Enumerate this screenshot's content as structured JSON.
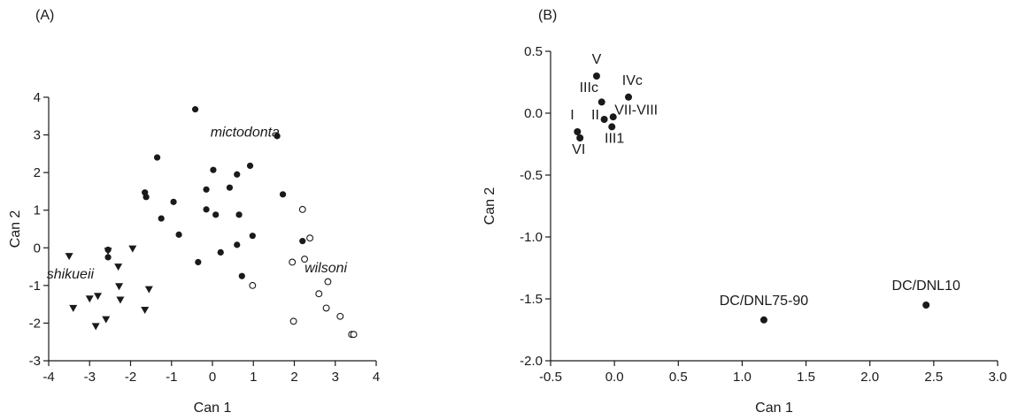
{
  "chart_data": [
    {
      "panel": "(A)",
      "type": "scatter",
      "xlabel": "Can 1",
      "ylabel": "Can 2",
      "xlim": [
        -4,
        4
      ],
      "ylim": [
        -3,
        4
      ],
      "xticks": [
        "-4",
        "-3",
        "-2",
        "-1",
        "0",
        "1",
        "2",
        "3",
        "4"
      ],
      "yticks": [
        "-3",
        "-2",
        "-1",
        "0",
        "1",
        "2",
        "3",
        "4"
      ],
      "grid": false,
      "series": [
        {
          "label": "mictodonta",
          "marker": "filled-circle",
          "label_at": [
            -0.05,
            2.95
          ],
          "points": [
            [
              -0.42,
              3.68
            ],
            [
              1.58,
              2.97
            ],
            [
              -1.35,
              2.4
            ],
            [
              0.92,
              2.18
            ],
            [
              0.02,
              2.07
            ],
            [
              0.6,
              1.95
            ],
            [
              -0.15,
              1.55
            ],
            [
              0.42,
              1.6
            ],
            [
              -1.65,
              1.47
            ],
            [
              -1.62,
              1.35
            ],
            [
              1.72,
              1.42
            ],
            [
              -0.95,
              1.22
            ],
            [
              -0.15,
              1.02
            ],
            [
              0.08,
              0.88
            ],
            [
              0.65,
              0.88
            ],
            [
              -1.25,
              0.78
            ],
            [
              -0.82,
              0.35
            ],
            [
              0.98,
              0.32
            ],
            [
              0.6,
              0.08
            ],
            [
              2.2,
              0.18
            ],
            [
              0.2,
              -0.12
            ],
            [
              -0.35,
              -0.38
            ],
            [
              0.72,
              -0.75
            ],
            [
              -2.55,
              -0.05
            ],
            [
              -2.55,
              -0.25
            ]
          ]
        },
        {
          "label": "wilsoni",
          "marker": "open-circle",
          "label_at": [
            2.25,
            -0.65
          ],
          "points": [
            [
              2.2,
              1.02
            ],
            [
              2.38,
              0.26
            ],
            [
              2.25,
              -0.3
            ],
            [
              1.95,
              -0.38
            ],
            [
              0.98,
              -1.0
            ],
            [
              2.82,
              -0.9
            ],
            [
              2.6,
              -1.22
            ],
            [
              2.78,
              -1.6
            ],
            [
              3.12,
              -1.82
            ],
            [
              1.98,
              -1.95
            ],
            [
              3.4,
              -2.3
            ],
            [
              3.45,
              -2.3
            ]
          ]
        },
        {
          "label": "shikueii",
          "marker": "filled-triangle-down",
          "label_at": [
            -4.05,
            -0.82
          ],
          "points": [
            [
              -3.5,
              -0.22
            ],
            [
              -1.95,
              -0.02
            ],
            [
              -2.55,
              -0.08
            ],
            [
              -2.3,
              -0.5
            ],
            [
              -1.55,
              -1.1
            ],
            [
              -3.0,
              -1.35
            ],
            [
              -2.8,
              -1.28
            ],
            [
              -2.28,
              -1.02
            ],
            [
              -3.4,
              -1.6
            ],
            [
              -2.25,
              -1.38
            ],
            [
              -2.6,
              -1.9
            ],
            [
              -1.65,
              -1.65
            ],
            [
              -2.85,
              -2.08
            ]
          ]
        }
      ]
    },
    {
      "panel": "(B)",
      "type": "scatter",
      "xlabel": "Can 1",
      "ylabel": "Can 2",
      "xlim": [
        -0.5,
        3.0
      ],
      "ylim": [
        -2.0,
        0.5
      ],
      "xticks": [
        "-0.5",
        "0.0",
        "0.5",
        "1.0",
        "1.5",
        "2.0",
        "2.5",
        "3.0"
      ],
      "yticks": [
        "-2.0",
        "-1.5",
        "-1.0",
        "-0.5",
        "0.0",
        "0.5"
      ],
      "grid": false,
      "points": [
        {
          "label": "V",
          "x": -0.14,
          "y": 0.3,
          "label_at": [
            -0.14,
            0.4
          ]
        },
        {
          "label": "IIIc",
          "x": -0.1,
          "y": 0.09,
          "label_at": [
            -0.2,
            0.17
          ]
        },
        {
          "label": "IVc",
          "x": 0.11,
          "y": 0.13,
          "label_at": [
            0.14,
            0.23
          ]
        },
        {
          "label": "II",
          "x": -0.08,
          "y": -0.05,
          "label_at": [
            -0.15,
            -0.05
          ]
        },
        {
          "label": "VII-VIII",
          "x": -0.01,
          "y": -0.03,
          "label_at": [
            0.17,
            -0.01
          ]
        },
        {
          "label": "III1",
          "x": -0.02,
          "y": -0.11,
          "label_at": [
            0.0,
            -0.24
          ]
        },
        {
          "label": "I",
          "x": -0.29,
          "y": -0.15,
          "label_at": [
            -0.33,
            -0.05
          ]
        },
        {
          "label": "VI",
          "x": -0.27,
          "y": -0.2,
          "label_at": [
            -0.28,
            -0.33
          ]
        },
        {
          "label": "DC/DNL75-90",
          "x": 1.17,
          "y": -1.67,
          "label_at": [
            1.17,
            -1.55
          ]
        },
        {
          "label": "DC/DNL10",
          "x": 2.44,
          "y": -1.55,
          "label_at": [
            2.44,
            -1.43
          ]
        }
      ]
    }
  ]
}
